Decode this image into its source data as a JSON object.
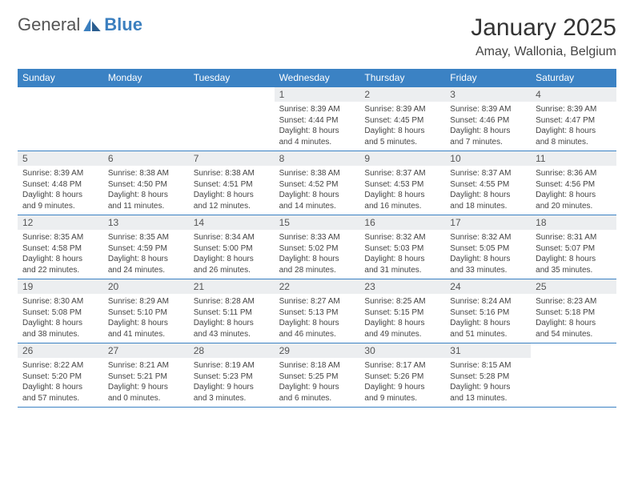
{
  "logo": {
    "word1": "General",
    "word2": "Blue"
  },
  "title": "January 2025",
  "location": "Amay, Wallonia, Belgium",
  "colors": {
    "header_bg": "#3b82c4",
    "header_text": "#ffffff",
    "daynum_bg": "#eceef0",
    "border": "#3b82c4",
    "logo_blue": "#3b7fbf"
  },
  "day_names": [
    "Sunday",
    "Monday",
    "Tuesday",
    "Wednesday",
    "Thursday",
    "Friday",
    "Saturday"
  ],
  "weeks": [
    [
      null,
      null,
      null,
      {
        "n": "1",
        "sr": "Sunrise: 8:39 AM",
        "ss": "Sunset: 4:44 PM",
        "d1": "Daylight: 8 hours",
        "d2": "and 4 minutes."
      },
      {
        "n": "2",
        "sr": "Sunrise: 8:39 AM",
        "ss": "Sunset: 4:45 PM",
        "d1": "Daylight: 8 hours",
        "d2": "and 5 minutes."
      },
      {
        "n": "3",
        "sr": "Sunrise: 8:39 AM",
        "ss": "Sunset: 4:46 PM",
        "d1": "Daylight: 8 hours",
        "d2": "and 7 minutes."
      },
      {
        "n": "4",
        "sr": "Sunrise: 8:39 AM",
        "ss": "Sunset: 4:47 PM",
        "d1": "Daylight: 8 hours",
        "d2": "and 8 minutes."
      }
    ],
    [
      {
        "n": "5",
        "sr": "Sunrise: 8:39 AM",
        "ss": "Sunset: 4:48 PM",
        "d1": "Daylight: 8 hours",
        "d2": "and 9 minutes."
      },
      {
        "n": "6",
        "sr": "Sunrise: 8:38 AM",
        "ss": "Sunset: 4:50 PM",
        "d1": "Daylight: 8 hours",
        "d2": "and 11 minutes."
      },
      {
        "n": "7",
        "sr": "Sunrise: 8:38 AM",
        "ss": "Sunset: 4:51 PM",
        "d1": "Daylight: 8 hours",
        "d2": "and 12 minutes."
      },
      {
        "n": "8",
        "sr": "Sunrise: 8:38 AM",
        "ss": "Sunset: 4:52 PM",
        "d1": "Daylight: 8 hours",
        "d2": "and 14 minutes."
      },
      {
        "n": "9",
        "sr": "Sunrise: 8:37 AM",
        "ss": "Sunset: 4:53 PM",
        "d1": "Daylight: 8 hours",
        "d2": "and 16 minutes."
      },
      {
        "n": "10",
        "sr": "Sunrise: 8:37 AM",
        "ss": "Sunset: 4:55 PM",
        "d1": "Daylight: 8 hours",
        "d2": "and 18 minutes."
      },
      {
        "n": "11",
        "sr": "Sunrise: 8:36 AM",
        "ss": "Sunset: 4:56 PM",
        "d1": "Daylight: 8 hours",
        "d2": "and 20 minutes."
      }
    ],
    [
      {
        "n": "12",
        "sr": "Sunrise: 8:35 AM",
        "ss": "Sunset: 4:58 PM",
        "d1": "Daylight: 8 hours",
        "d2": "and 22 minutes."
      },
      {
        "n": "13",
        "sr": "Sunrise: 8:35 AM",
        "ss": "Sunset: 4:59 PM",
        "d1": "Daylight: 8 hours",
        "d2": "and 24 minutes."
      },
      {
        "n": "14",
        "sr": "Sunrise: 8:34 AM",
        "ss": "Sunset: 5:00 PM",
        "d1": "Daylight: 8 hours",
        "d2": "and 26 minutes."
      },
      {
        "n": "15",
        "sr": "Sunrise: 8:33 AM",
        "ss": "Sunset: 5:02 PM",
        "d1": "Daylight: 8 hours",
        "d2": "and 28 minutes."
      },
      {
        "n": "16",
        "sr": "Sunrise: 8:32 AM",
        "ss": "Sunset: 5:03 PM",
        "d1": "Daylight: 8 hours",
        "d2": "and 31 minutes."
      },
      {
        "n": "17",
        "sr": "Sunrise: 8:32 AM",
        "ss": "Sunset: 5:05 PM",
        "d1": "Daylight: 8 hours",
        "d2": "and 33 minutes."
      },
      {
        "n": "18",
        "sr": "Sunrise: 8:31 AM",
        "ss": "Sunset: 5:07 PM",
        "d1": "Daylight: 8 hours",
        "d2": "and 35 minutes."
      }
    ],
    [
      {
        "n": "19",
        "sr": "Sunrise: 8:30 AM",
        "ss": "Sunset: 5:08 PM",
        "d1": "Daylight: 8 hours",
        "d2": "and 38 minutes."
      },
      {
        "n": "20",
        "sr": "Sunrise: 8:29 AM",
        "ss": "Sunset: 5:10 PM",
        "d1": "Daylight: 8 hours",
        "d2": "and 41 minutes."
      },
      {
        "n": "21",
        "sr": "Sunrise: 8:28 AM",
        "ss": "Sunset: 5:11 PM",
        "d1": "Daylight: 8 hours",
        "d2": "and 43 minutes."
      },
      {
        "n": "22",
        "sr": "Sunrise: 8:27 AM",
        "ss": "Sunset: 5:13 PM",
        "d1": "Daylight: 8 hours",
        "d2": "and 46 minutes."
      },
      {
        "n": "23",
        "sr": "Sunrise: 8:25 AM",
        "ss": "Sunset: 5:15 PM",
        "d1": "Daylight: 8 hours",
        "d2": "and 49 minutes."
      },
      {
        "n": "24",
        "sr": "Sunrise: 8:24 AM",
        "ss": "Sunset: 5:16 PM",
        "d1": "Daylight: 8 hours",
        "d2": "and 51 minutes."
      },
      {
        "n": "25",
        "sr": "Sunrise: 8:23 AM",
        "ss": "Sunset: 5:18 PM",
        "d1": "Daylight: 8 hours",
        "d2": "and 54 minutes."
      }
    ],
    [
      {
        "n": "26",
        "sr": "Sunrise: 8:22 AM",
        "ss": "Sunset: 5:20 PM",
        "d1": "Daylight: 8 hours",
        "d2": "and 57 minutes."
      },
      {
        "n": "27",
        "sr": "Sunrise: 8:21 AM",
        "ss": "Sunset: 5:21 PM",
        "d1": "Daylight: 9 hours",
        "d2": "and 0 minutes."
      },
      {
        "n": "28",
        "sr": "Sunrise: 8:19 AM",
        "ss": "Sunset: 5:23 PM",
        "d1": "Daylight: 9 hours",
        "d2": "and 3 minutes."
      },
      {
        "n": "29",
        "sr": "Sunrise: 8:18 AM",
        "ss": "Sunset: 5:25 PM",
        "d1": "Daylight: 9 hours",
        "d2": "and 6 minutes."
      },
      {
        "n": "30",
        "sr": "Sunrise: 8:17 AM",
        "ss": "Sunset: 5:26 PM",
        "d1": "Daylight: 9 hours",
        "d2": "and 9 minutes."
      },
      {
        "n": "31",
        "sr": "Sunrise: 8:15 AM",
        "ss": "Sunset: 5:28 PM",
        "d1": "Daylight: 9 hours",
        "d2": "and 13 minutes."
      },
      null
    ]
  ]
}
